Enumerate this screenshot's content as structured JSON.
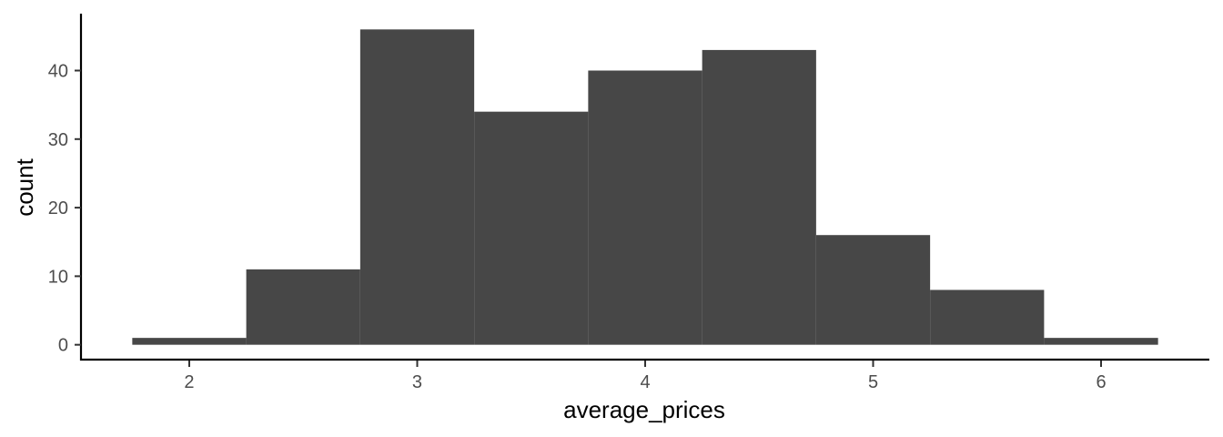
{
  "chart_data": {
    "type": "bar",
    "title": "",
    "xlabel": "average_prices",
    "ylabel": "count",
    "bin_width": 0.5,
    "bins": [
      {
        "start": 1.75,
        "end": 2.25,
        "count": 1
      },
      {
        "start": 2.25,
        "end": 2.75,
        "count": 11
      },
      {
        "start": 2.75,
        "end": 3.25,
        "count": 46
      },
      {
        "start": 3.25,
        "end": 3.75,
        "count": 34
      },
      {
        "start": 3.75,
        "end": 4.25,
        "count": 40
      },
      {
        "start": 4.25,
        "end": 4.75,
        "count": 43
      },
      {
        "start": 4.75,
        "end": 5.25,
        "count": 16
      },
      {
        "start": 5.25,
        "end": 5.75,
        "count": 8
      },
      {
        "start": 5.75,
        "end": 6.25,
        "count": 1
      }
    ],
    "x_ticks": [
      2,
      3,
      4,
      5,
      6
    ],
    "y_ticks": [
      0,
      10,
      20,
      30,
      40
    ],
    "xlim": [
      1.525,
      6.475
    ],
    "ylim": [
      -2.3,
      48.3
    ],
    "grid": false,
    "bar_color": "#474747",
    "background_color": "#ffffff"
  }
}
